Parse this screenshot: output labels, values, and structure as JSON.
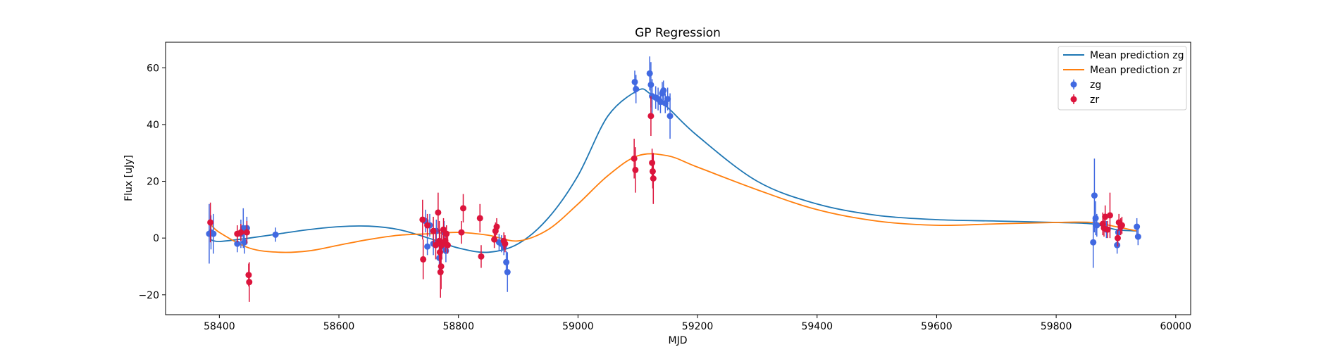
{
  "chart_data": {
    "type": "scatter",
    "title": "GP Regression",
    "xlabel": "MJD",
    "ylabel": "Flux [uJy]",
    "xlim": [
      58310,
      60025
    ],
    "ylim": [
      -27,
      69
    ],
    "xticks": [
      58400,
      58600,
      58800,
      59000,
      59200,
      59400,
      59600,
      59800,
      60000
    ],
    "yticks": [
      -20,
      0,
      20,
      40,
      60
    ],
    "grid": false,
    "legend_position": "top-right",
    "legend": [
      "Mean prediction zg",
      "Mean prediction zr",
      "zg",
      "zr"
    ],
    "lines": [
      {
        "name": "Mean prediction zg",
        "color": "#1f77b4",
        "x": [
          58385,
          58400,
          58450,
          58500,
          58550,
          58600,
          58650,
          58700,
          58750,
          58800,
          58850,
          58900,
          58950,
          59000,
          59050,
          59100,
          59120,
          59150,
          59200,
          59300,
          59400,
          59500,
          59600,
          59700,
          59800,
          59860,
          59900,
          59935
        ],
        "y": [
          -0.5,
          -1.2,
          0,
          1.5,
          3,
          4,
          4.2,
          3,
          0,
          -3.5,
          -5,
          -2,
          7,
          22,
          43,
          52,
          51,
          46,
          36,
          20,
          12,
          8,
          6.5,
          6,
          5.5,
          5,
          3,
          2.5
        ]
      },
      {
        "name": "Mean prediction zr",
        "color": "#ff7f0e",
        "x": [
          58385,
          58400,
          58450,
          58500,
          58550,
          58600,
          58650,
          58700,
          58750,
          58800,
          58850,
          58900,
          58950,
          59000,
          59050,
          59100,
          59150,
          59200,
          59300,
          59400,
          59500,
          59600,
          59700,
          59800,
          59860,
          59900,
          59935
        ],
        "y": [
          5,
          2,
          -3.5,
          -5,
          -4.5,
          -2.5,
          -0.5,
          1,
          1.5,
          2,
          1,
          -1,
          3,
          12,
          22,
          29,
          29,
          25,
          17,
          10,
          6,
          4.5,
          5,
          5.5,
          5.5,
          4,
          2.5
        ]
      }
    ],
    "series": [
      {
        "name": "zg",
        "color": "#4169e1",
        "points": [
          [
            58383,
            1.5,
            10.5
          ],
          [
            58386,
            2,
            6
          ],
          [
            58390,
            1.5,
            7
          ],
          [
            58430,
            -2,
            3
          ],
          [
            58436,
            1.5,
            5
          ],
          [
            58440,
            3.5,
            7
          ],
          [
            58442,
            -1.5,
            4
          ],
          [
            58446,
            3.5,
            4
          ],
          [
            58494,
            1.2,
            2.5
          ],
          [
            58745,
            6,
            4
          ],
          [
            58748,
            -3,
            3
          ],
          [
            58752,
            4.5,
            4
          ],
          [
            58758,
            -2,
            4
          ],
          [
            58763,
            2.5,
            4
          ],
          [
            58768,
            -7,
            5
          ],
          [
            58772,
            -3,
            4
          ],
          [
            58776,
            2,
            4
          ],
          [
            58779,
            -4.5,
            4
          ],
          [
            58868,
            -1.5,
            3
          ],
          [
            58872,
            -2,
            3
          ],
          [
            58876,
            -3,
            3
          ],
          [
            58880,
            -8.5,
            4
          ],
          [
            58882,
            -12,
            7
          ],
          [
            59095,
            55,
            4
          ],
          [
            59097,
            52.5,
            5
          ],
          [
            59120,
            58,
            6
          ],
          [
            59122,
            54,
            8
          ],
          [
            59124,
            50,
            6
          ],
          [
            59130,
            49.5,
            4
          ],
          [
            59134,
            49,
            4
          ],
          [
            59138,
            48,
            4
          ],
          [
            59141,
            51,
            4
          ],
          [
            59143,
            52,
            3.5
          ],
          [
            59146,
            47.5,
            3.5
          ],
          [
            59150,
            49,
            4
          ],
          [
            59154,
            43,
            8
          ],
          [
            59862,
            -1.5,
            9
          ],
          [
            59864,
            15,
            13
          ],
          [
            59866,
            7,
            6
          ],
          [
            59868,
            4.5,
            4
          ],
          [
            59884,
            3,
            3
          ],
          [
            59902,
            -2.5,
            3
          ],
          [
            59904,
            2,
            3
          ],
          [
            59935,
            4,
            3
          ],
          [
            59937,
            0.5,
            3
          ]
        ]
      },
      {
        "name": "zr",
        "color": "#dc143c",
        "points": [
          [
            58385,
            5.5,
            7
          ],
          [
            58430,
            1.5,
            3
          ],
          [
            58436,
            2,
            3
          ],
          [
            58446,
            2,
            4
          ],
          [
            58449,
            -13,
            4
          ],
          [
            58450,
            -15.5,
            7
          ],
          [
            58740,
            6.5,
            7
          ],
          [
            58741,
            -7.5,
            7
          ],
          [
            58748,
            4.5,
            4
          ],
          [
            58758,
            2.5,
            5
          ],
          [
            58762,
            -2.5,
            5
          ],
          [
            58766,
            9,
            7
          ],
          [
            58768,
            -1,
            7
          ],
          [
            58769,
            -5,
            8
          ],
          [
            58770,
            -12,
            9
          ],
          [
            58771,
            -10,
            8
          ],
          [
            58772,
            -2.5,
            5
          ],
          [
            58775,
            3,
            4
          ],
          [
            58778,
            -1,
            4
          ],
          [
            58780,
            1.5,
            3
          ],
          [
            58782,
            -2.5,
            3
          ],
          [
            58805,
            2,
            4
          ],
          [
            58808,
            10.5,
            5
          ],
          [
            58836,
            7,
            5
          ],
          [
            58838,
            -6.5,
            4
          ],
          [
            58860,
            -0.5,
            3
          ],
          [
            58862,
            2.5,
            3
          ],
          [
            58864,
            4,
            3
          ],
          [
            58876,
            -1,
            3
          ],
          [
            58878,
            -2,
            3
          ],
          [
            59094,
            28,
            7
          ],
          [
            59096,
            24,
            8
          ],
          [
            59122,
            43,
            7
          ],
          [
            59124,
            26.5,
            5
          ],
          [
            59125,
            23.5,
            6
          ],
          [
            59126,
            21,
            9
          ],
          [
            59878,
            5,
            4
          ],
          [
            59880,
            3.5,
            3
          ],
          [
            59882,
            7.5,
            4
          ],
          [
            59886,
            3,
            3
          ],
          [
            59890,
            8,
            8
          ],
          [
            59903,
            0,
            3
          ],
          [
            59905,
            5.5,
            3
          ],
          [
            59908,
            4,
            3
          ],
          [
            59910,
            4.5,
            3
          ]
        ]
      }
    ]
  }
}
